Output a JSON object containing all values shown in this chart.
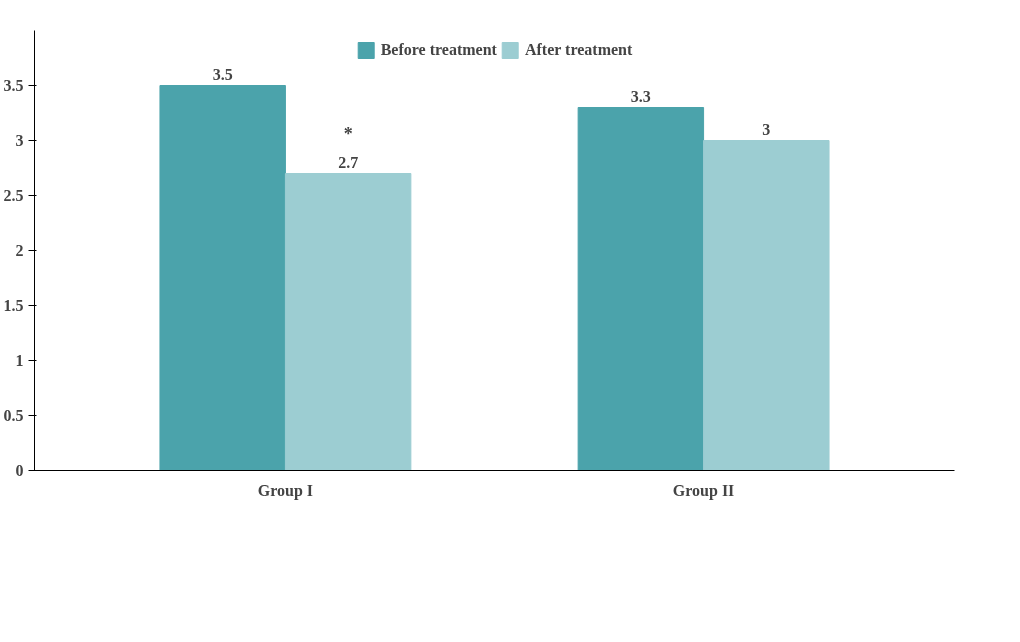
{
  "chart_data": {
    "type": "bar",
    "categories": [
      "Group I",
      "Group II"
    ],
    "series": [
      {
        "name": "Before treatment",
        "color": "#4ba3ab",
        "values": [
          3.5,
          3.3
        ]
      },
      {
        "name": "After treatment",
        "color": "#9ccdd2",
        "values": [
          2.7,
          3
        ]
      }
    ],
    "ylim": [
      0,
      4
    ],
    "yticks": [
      0,
      0.5,
      1,
      1.5,
      2,
      2.5,
      3,
      3.5
    ],
    "grid": false,
    "legend": "top",
    "data_labels": true,
    "annotations": [
      "*"
    ]
  }
}
